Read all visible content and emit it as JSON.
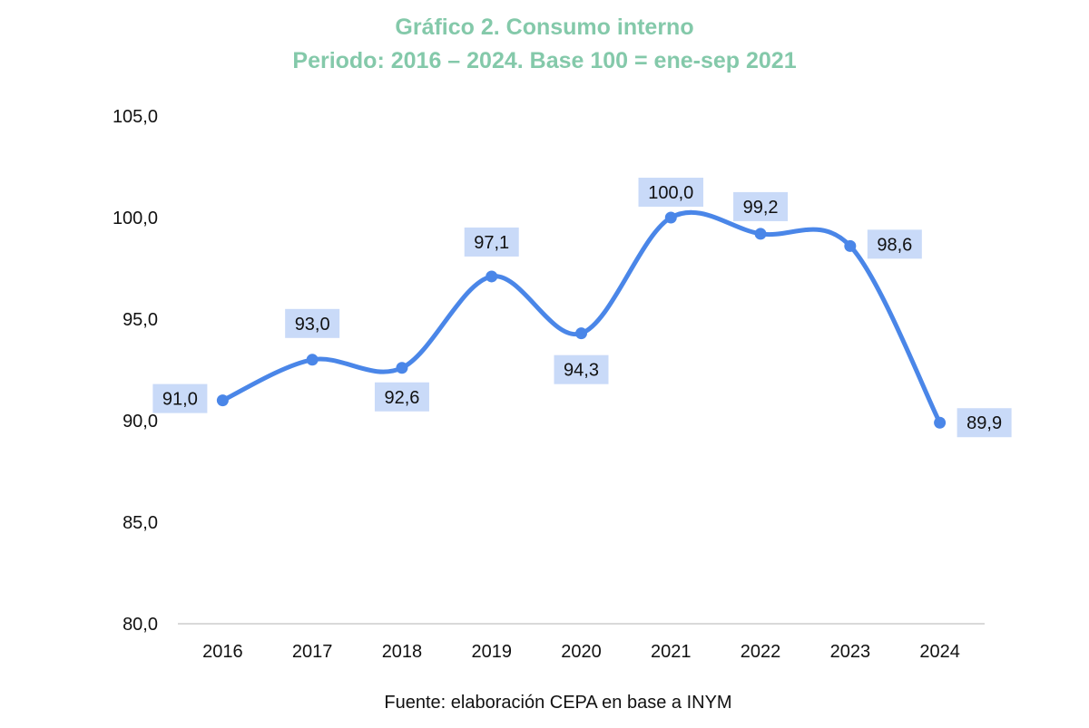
{
  "chart_data": {
    "type": "line",
    "title": "Gráfico 2. Consumo interno",
    "subtitle": "Periodo: 2016 – 2024. Base 100 = ene-sep 2021",
    "xlabel": "",
    "ylabel": "",
    "categories": [
      "2016",
      "2017",
      "2018",
      "2019",
      "2020",
      "2021",
      "2022",
      "2023",
      "2024"
    ],
    "series": [
      {
        "name": "Consumo interno",
        "values": [
          91.0,
          93.0,
          92.6,
          97.1,
          94.3,
          100.0,
          99.2,
          98.6,
          89.9
        ],
        "labels": [
          "91,0",
          "93,0",
          "92,6",
          "97,1",
          "94,3",
          "100,0",
          "99,2",
          "98,6",
          "89,9"
        ],
        "color": "#4a86e8",
        "smooth": true
      }
    ],
    "ylim": [
      80,
      105
    ],
    "yticks": [
      80,
      85,
      90,
      95,
      100,
      105
    ],
    "ytick_labels": [
      "80,0",
      "85,0",
      "90,0",
      "95,0",
      "100,0",
      "105,0"
    ],
    "grid": false,
    "legend": "none",
    "label_bg_color": "#c9daf8",
    "title_color": "#84c9aa",
    "source": "Fuente: elaboración CEPA en base a INYM"
  }
}
